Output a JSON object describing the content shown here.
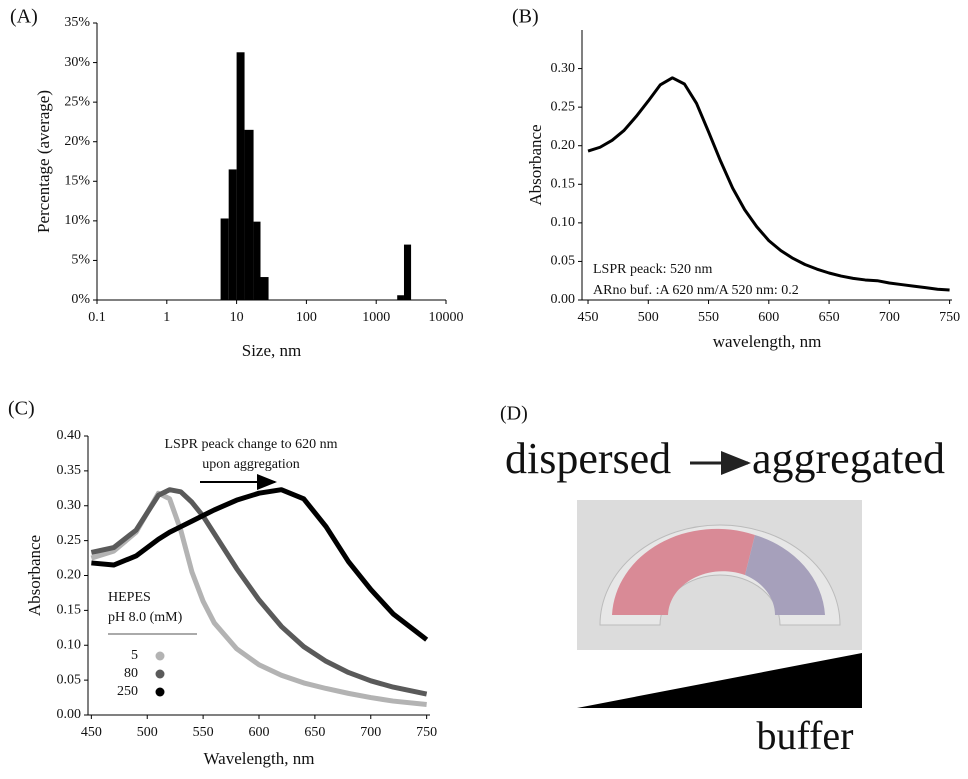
{
  "chart_data": [
    {
      "type": "histogram",
      "label": "(A)",
      "xlabel": "Size, nm",
      "ylabel": "Percentage (average)",
      "color": "#000000",
      "xscale": "log",
      "bins": [
        5.9,
        7.7,
        10,
        13,
        17.5,
        22,
        28.7,
        2000,
        2500,
        3160
      ],
      "values": [
        10.3,
        16.5,
        31.3,
        21.5,
        9.9,
        2.9,
        0,
        0.6,
        7
      ],
      "xlim": [
        0.1,
        10000
      ],
      "xticks": [
        0.1,
        1,
        10,
        100,
        1000,
        10000
      ],
      "ylim": [
        0,
        35
      ],
      "yticks": [
        {
          "value": 0,
          "label": "0%"
        },
        {
          "value": 5,
          "label": "5%"
        },
        {
          "value": 10,
          "label": "10%"
        },
        {
          "value": 15,
          "label": "15%"
        },
        {
          "value": 20,
          "label": "20%"
        },
        {
          "value": 25,
          "label": "25%"
        },
        {
          "value": 30,
          "label": "30%"
        },
        {
          "value": 35,
          "label": "35%"
        }
      ]
    },
    {
      "type": "line",
      "label": "(B)",
      "xlabel": "wavelength, nm",
      "ylabel": "Absorbance",
      "color": "#000000",
      "annotations": [
        "LSPR peack: 520 nm",
        "ARno buf. :A 620 nm/A 520 nm: 0.2"
      ],
      "x": [
        450,
        460,
        470,
        480,
        490,
        500,
        510,
        520,
        530,
        540,
        550,
        560,
        570,
        580,
        590,
        600,
        610,
        620,
        630,
        640,
        650,
        660,
        670,
        680,
        690,
        700,
        710,
        720,
        730,
        740,
        750
      ],
      "values": [
        0.193,
        0.198,
        0.207,
        0.22,
        0.238,
        0.258,
        0.279,
        0.288,
        0.28,
        0.255,
        0.218,
        0.18,
        0.145,
        0.117,
        0.095,
        0.077,
        0.064,
        0.054,
        0.046,
        0.04,
        0.035,
        0.031,
        0.028,
        0.026,
        0.025,
        0.022,
        0.02,
        0.018,
        0.016,
        0.014,
        0.013
      ],
      "xlim": [
        445,
        752
      ],
      "xticks": [
        450,
        500,
        550,
        600,
        650,
        700,
        750
      ],
      "ylim": [
        0,
        0.35
      ],
      "yticks": [
        {
          "value": 0,
          "label": "0.00"
        },
        {
          "value": 0.05,
          "label": "0.05"
        },
        {
          "value": 0.1,
          "label": "0.10"
        },
        {
          "value": 0.15,
          "label": "0.15"
        },
        {
          "value": 0.2,
          "label": "0.20"
        },
        {
          "value": 0.25,
          "label": "0.25"
        },
        {
          "value": 0.3,
          "label": "0.30"
        }
      ]
    },
    {
      "type": "line",
      "label": "(C)",
      "xlabel": "Wavelength, nm",
      "ylabel": "Absorbance",
      "annotations": [
        "LSPR peack change to 620 nm",
        "upon aggregation"
      ],
      "legend_title": [
        "HEPES",
        "pH 8.0 (mM)"
      ],
      "x": [
        450,
        470,
        490,
        500,
        510,
        520,
        530,
        540,
        550,
        560,
        580,
        600,
        620,
        640,
        660,
        680,
        700,
        720,
        750
      ],
      "series": [
        {
          "name": "5",
          "color": "#b3b3b3",
          "values": [
            0.225,
            0.235,
            0.262,
            0.29,
            0.318,
            0.31,
            0.265,
            0.205,
            0.163,
            0.132,
            0.095,
            0.072,
            0.057,
            0.046,
            0.038,
            0.031,
            0.025,
            0.02,
            0.015
          ]
        },
        {
          "name": "80",
          "color": "#5a5a5a",
          "values": [
            0.233,
            0.24,
            0.265,
            0.29,
            0.315,
            0.323,
            0.32,
            0.305,
            0.285,
            0.26,
            0.21,
            0.165,
            0.127,
            0.098,
            0.077,
            0.061,
            0.049,
            0.04,
            0.03
          ]
        },
        {
          "name": "250",
          "color": "#000000",
          "values": [
            0.218,
            0.215,
            0.228,
            0.24,
            0.252,
            0.262,
            0.27,
            0.278,
            0.286,
            0.294,
            0.308,
            0.318,
            0.323,
            0.31,
            0.27,
            0.22,
            0.18,
            0.145,
            0.108
          ]
        }
      ],
      "xlim": [
        447,
        753
      ],
      "xticks": [
        450,
        500,
        550,
        600,
        650,
        700,
        750
      ],
      "ylim": [
        0,
        0.4
      ],
      "yticks": [
        {
          "value": 0,
          "label": "0.00"
        },
        {
          "value": 0.05,
          "label": "0.05"
        },
        {
          "value": 0.1,
          "label": "0.10"
        },
        {
          "value": 0.15,
          "label": "0.15"
        },
        {
          "value": 0.2,
          "label": "0.20"
        },
        {
          "value": 0.25,
          "label": "0.25"
        },
        {
          "value": 0.3,
          "label": "0.30"
        },
        {
          "value": 0.35,
          "label": "0.35"
        },
        {
          "value": 0.4,
          "label": "0.40"
        }
      ]
    }
  ],
  "panel_d": {
    "label": "(D)",
    "from": "dispersed",
    "to": "aggregated",
    "axis": "buffer"
  }
}
